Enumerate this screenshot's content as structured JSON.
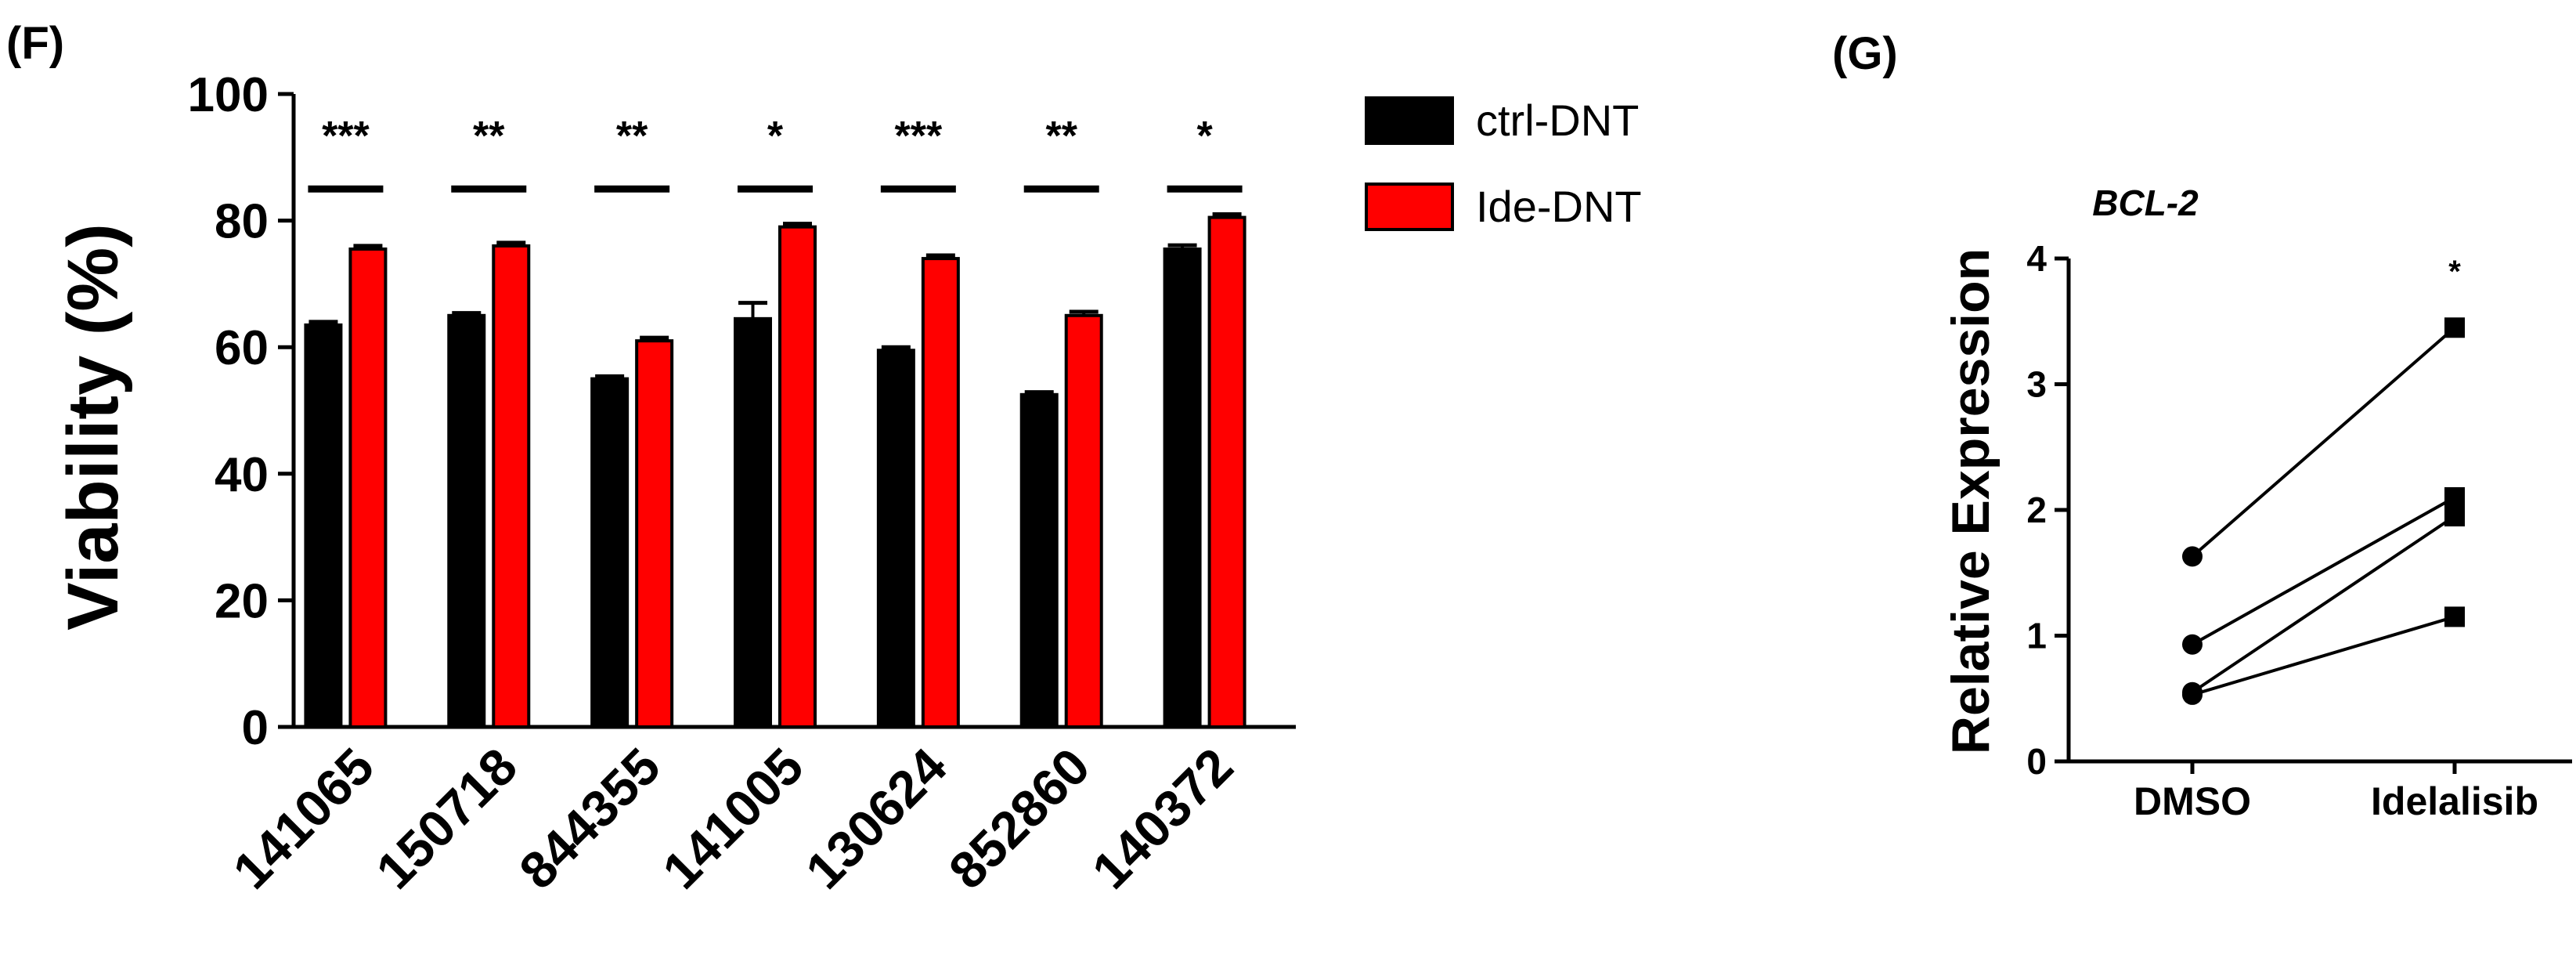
{
  "chart_data": [
    {
      "panel": "(F)",
      "type": "bar",
      "title": "",
      "xlabel": "",
      "ylabel": "Viability (%)",
      "ylim": [
        0,
        100
      ],
      "yticks": [
        0,
        20,
        40,
        60,
        80,
        100
      ],
      "categories": [
        "141065",
        "150718",
        "844355",
        "141005",
        "130624",
        "852860",
        "140372"
      ],
      "series": [
        {
          "name": "ctrl-DNT",
          "color": "#000000",
          "values": [
            63.5,
            65,
            55,
            64.5,
            59.5,
            52.5,
            75.5
          ],
          "errors": [
            0.5,
            0.4,
            0.4,
            2.5,
            0.5,
            0.4,
            0.6
          ]
        },
        {
          "name": "Ide-DNT",
          "color": "#ff0000",
          "values": [
            75.5,
            76,
            61,
            79,
            74,
            65,
            80.5
          ],
          "errors": [
            0.5,
            0.5,
            0.5,
            0.5,
            0.5,
            0.6,
            0.5
          ]
        }
      ],
      "significance": [
        "***",
        "**",
        "**",
        "*",
        "***",
        "**",
        "*"
      ],
      "significance_bar_y": 85,
      "legend_position": "top-right",
      "grid": false
    },
    {
      "panel": "(G)",
      "type": "line",
      "title": "BCL-2",
      "xlabel": "",
      "ylabel": "Relative Expression",
      "ylim": [
        0,
        4
      ],
      "yticks": [
        0,
        1,
        2,
        3,
        4
      ],
      "categories": [
        "DMSO",
        "Idelalisib"
      ],
      "pairs": [
        {
          "values": [
            1.63,
            3.45
          ]
        },
        {
          "values": [
            0.93,
            2.1
          ]
        },
        {
          "values": [
            0.55,
            1.95
          ]
        },
        {
          "values": [
            0.53,
            1.15
          ]
        }
      ],
      "markers": [
        "circle",
        "square"
      ],
      "significance": "*",
      "grid": false
    }
  ]
}
